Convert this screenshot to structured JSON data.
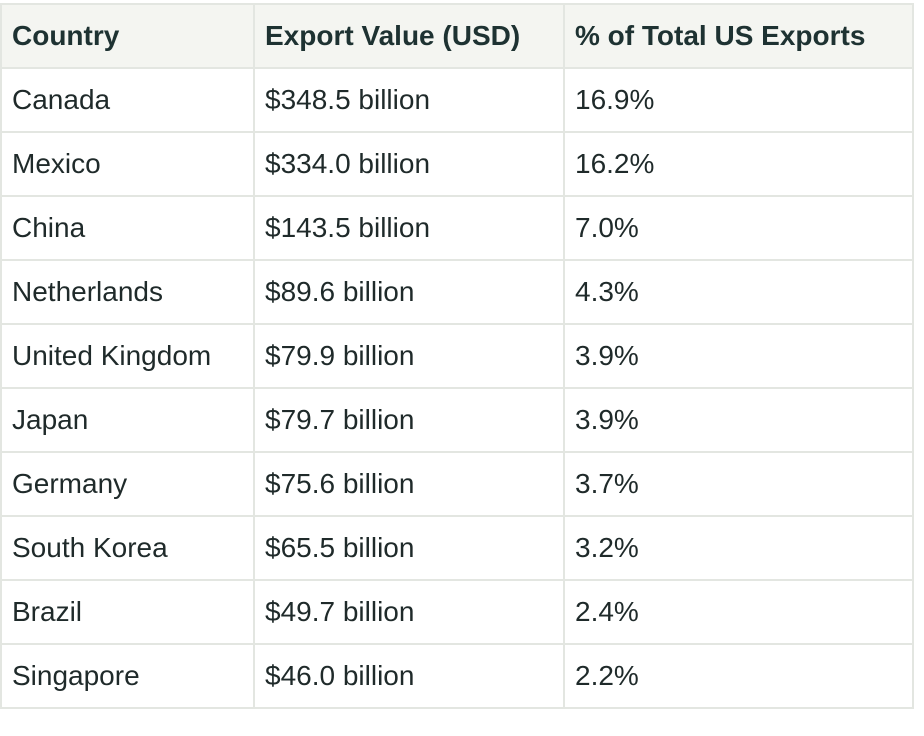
{
  "table": {
    "headers": [
      "Country",
      "Export Value (USD)",
      "% of Total US Exports"
    ],
    "rows": [
      [
        "Canada",
        "$348.5 billion",
        "16.9%"
      ],
      [
        "Mexico",
        "$334.0 billion",
        "16.2%"
      ],
      [
        "China",
        "$143.5 billion",
        "7.0%"
      ],
      [
        "Netherlands",
        "$89.6 billion",
        "4.3%"
      ],
      [
        "United Kingdom",
        "$79.9 billion",
        "3.9%"
      ],
      [
        "Japan",
        "$79.7 billion",
        "3.9%"
      ],
      [
        "Germany",
        "$75.6 billion",
        "3.7%"
      ],
      [
        "South Korea",
        "$65.5 billion",
        "3.2%"
      ],
      [
        "Brazil",
        "$49.7 billion",
        "2.4%"
      ],
      [
        "Singapore",
        "$46.0 billion",
        "2.2%"
      ]
    ]
  }
}
